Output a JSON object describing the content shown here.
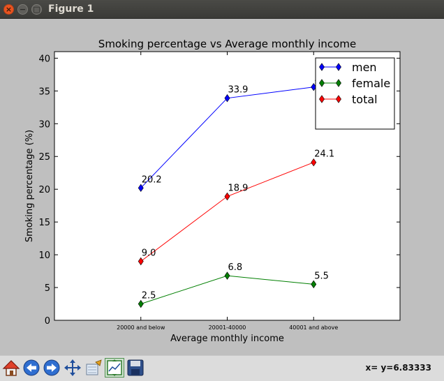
{
  "window": {
    "title": "Figure 1"
  },
  "toolbar": {
    "buttons": [
      {
        "icon": "home-icon"
      },
      {
        "icon": "back-arrow-icon"
      },
      {
        "icon": "forward-arrow-icon"
      },
      {
        "icon": "pan-icon"
      },
      {
        "icon": "zoom-icon"
      },
      {
        "icon": "subplots-icon"
      },
      {
        "icon": "save-icon"
      }
    ],
    "status": "x= y=6.83333"
  },
  "chart_data": {
    "type": "line",
    "title": "Smoking percentage vs Average monthly income",
    "xlabel": "Average monthly income",
    "ylabel": "Smoking percentage (%)",
    "categories": [
      "20000 and below",
      "20001-40000",
      "40001 and above"
    ],
    "ylim": [
      0,
      41
    ],
    "yticks": [
      "0",
      "5",
      "10",
      "15",
      "20",
      "25",
      "30",
      "35",
      "40"
    ],
    "grid": false,
    "legend_position": "top-right",
    "series": [
      {
        "name": "men",
        "color": "#0000ff",
        "values": [
          20.2,
          33.9,
          35.6
        ],
        "labels": [
          "20.2",
          "33.9",
          "35.6"
        ]
      },
      {
        "name": "female",
        "color": "#007f00",
        "values": [
          2.5,
          6.8,
          5.5
        ],
        "labels": [
          "2.5",
          "6.8",
          "5.5"
        ]
      },
      {
        "name": "total",
        "color": "#ff0000",
        "values": [
          9.0,
          18.9,
          24.1
        ],
        "labels": [
          "9.0",
          "18.9",
          "24.1"
        ]
      }
    ]
  }
}
